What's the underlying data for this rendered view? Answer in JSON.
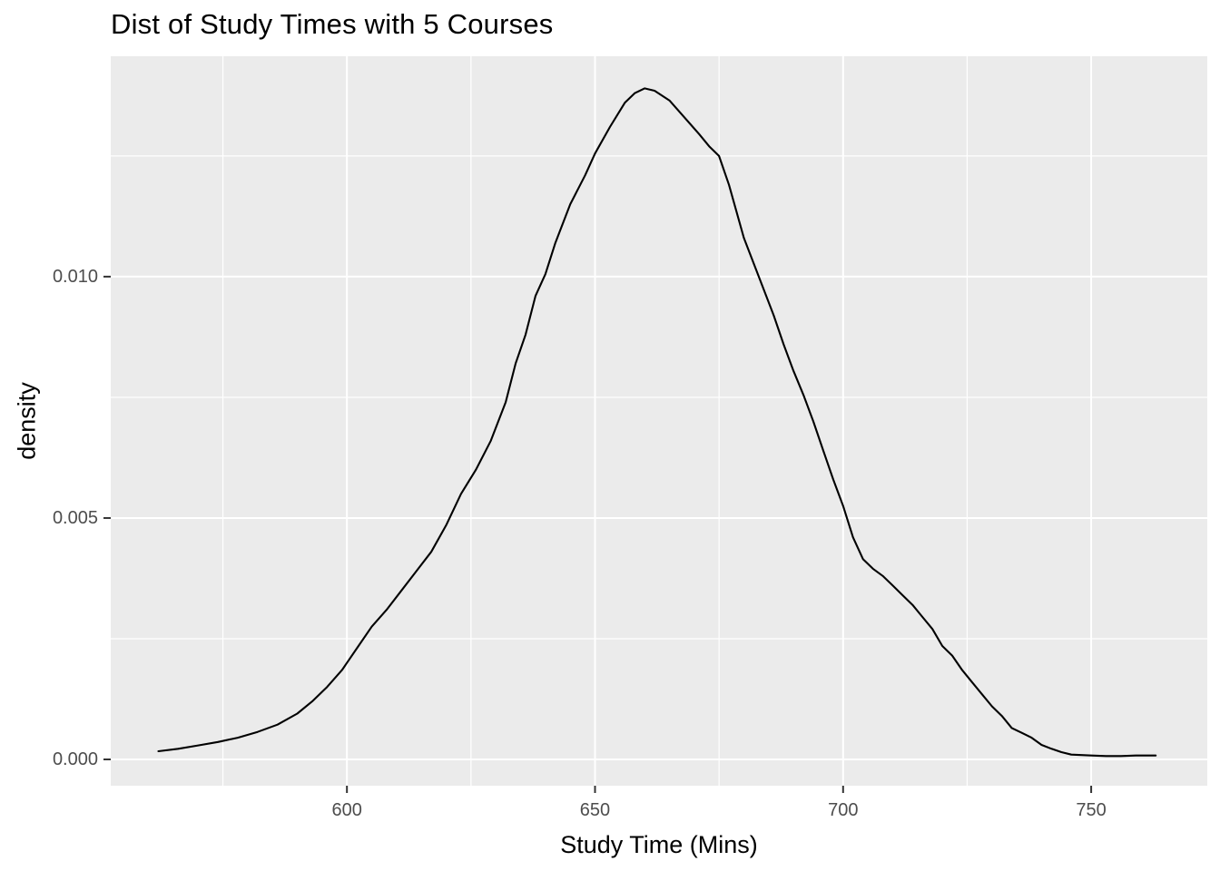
{
  "title": "Dist of Study Times with 5 Courses",
  "chart_data": {
    "type": "line",
    "subtype": "density-curve",
    "title": "Dist of Study Times with 5 Courses",
    "xlabel": "Study Time (Mins)",
    "ylabel": "density",
    "legend": "none",
    "grid": "major and minor white gridlines on gray panel",
    "x_axis": {
      "range": [
        552.4,
        773.4
      ],
      "ticks": [
        600,
        650,
        700,
        750
      ],
      "tick_labels": [
        "600",
        "650",
        "700",
        "750"
      ],
      "minor_ticks": [
        575,
        625,
        675,
        725
      ]
    },
    "y_axis": {
      "range": [
        -0.000545,
        0.014565
      ],
      "ticks": [
        0,
        0.005,
        0.01
      ],
      "tick_labels": [
        "0.000",
        "0.005",
        "0.010"
      ],
      "minor_ticks": [
        0.0025,
        0.0075,
        0.0125
      ]
    },
    "peak": {
      "x": 660,
      "y": 0.0139
    },
    "series": [
      {
        "name": "density",
        "color": "#000000",
        "points": [
          [
            562,
            0.00017
          ],
          [
            566,
            0.00022
          ],
          [
            570,
            0.00029
          ],
          [
            574,
            0.00036
          ],
          [
            578,
            0.00045
          ],
          [
            582,
            0.00057
          ],
          [
            586,
            0.00072
          ],
          [
            590,
            0.00095
          ],
          [
            593,
            0.0012
          ],
          [
            596,
            0.0015
          ],
          [
            599,
            0.00185
          ],
          [
            602,
            0.0023
          ],
          [
            605,
            0.00275
          ],
          [
            608,
            0.0031
          ],
          [
            611,
            0.0035
          ],
          [
            614,
            0.0039
          ],
          [
            617,
            0.0043
          ],
          [
            620,
            0.00485
          ],
          [
            623,
            0.0055
          ],
          [
            626,
            0.006
          ],
          [
            629,
            0.0066
          ],
          [
            632,
            0.0074
          ],
          [
            634,
            0.0082
          ],
          [
            636,
            0.0088
          ],
          [
            638,
            0.0096
          ],
          [
            640,
            0.01005
          ],
          [
            642,
            0.0107
          ],
          [
            645,
            0.0115
          ],
          [
            648,
            0.0121
          ],
          [
            650,
            0.01255
          ],
          [
            653,
            0.0131
          ],
          [
            656,
            0.0136
          ],
          [
            658,
            0.0138
          ],
          [
            660,
            0.0139
          ],
          [
            662,
            0.01385
          ],
          [
            665,
            0.01365
          ],
          [
            668,
            0.0133
          ],
          [
            671,
            0.01295
          ],
          [
            673,
            0.0127
          ],
          [
            675,
            0.0125
          ],
          [
            677,
            0.0119
          ],
          [
            680,
            0.0108
          ],
          [
            683,
            0.01
          ],
          [
            686,
            0.0092
          ],
          [
            688,
            0.0086
          ],
          [
            690,
            0.00805
          ],
          [
            692,
            0.00755
          ],
          [
            694,
            0.007
          ],
          [
            696,
            0.0064
          ],
          [
            698,
            0.0058
          ],
          [
            700,
            0.00525
          ],
          [
            702,
            0.0046
          ],
          [
            704,
            0.00415
          ],
          [
            706,
            0.00395
          ],
          [
            708,
            0.0038
          ],
          [
            710,
            0.0036
          ],
          [
            712,
            0.0034
          ],
          [
            714,
            0.0032
          ],
          [
            716,
            0.00295
          ],
          [
            718,
            0.0027
          ],
          [
            720,
            0.00235
          ],
          [
            722,
            0.00215
          ],
          [
            724,
            0.00185
          ],
          [
            726,
            0.0016
          ],
          [
            728,
            0.00135
          ],
          [
            730,
            0.0011
          ],
          [
            732,
            0.0009
          ],
          [
            734,
            0.00065
          ],
          [
            736,
            0.00055
          ],
          [
            738,
            0.00045
          ],
          [
            740,
            0.0003
          ],
          [
            742,
            0.00022
          ],
          [
            744,
            0.00015
          ],
          [
            746,
            0.0001
          ],
          [
            748,
            9e-05
          ],
          [
            750,
            8e-05
          ],
          [
            753,
            7e-05
          ],
          [
            756,
            7e-05
          ],
          [
            759,
            8e-05
          ],
          [
            763,
            8e-05
          ]
        ]
      }
    ],
    "style": {
      "background": "#FFFFFF",
      "panel_bg": "#EBEBEB",
      "grid_color": "#FFFFFF",
      "curve_color": "#000000",
      "tick_mark_color": "#333333",
      "tick_label_color": "#4D4D4D",
      "title_color": "#000000"
    }
  }
}
